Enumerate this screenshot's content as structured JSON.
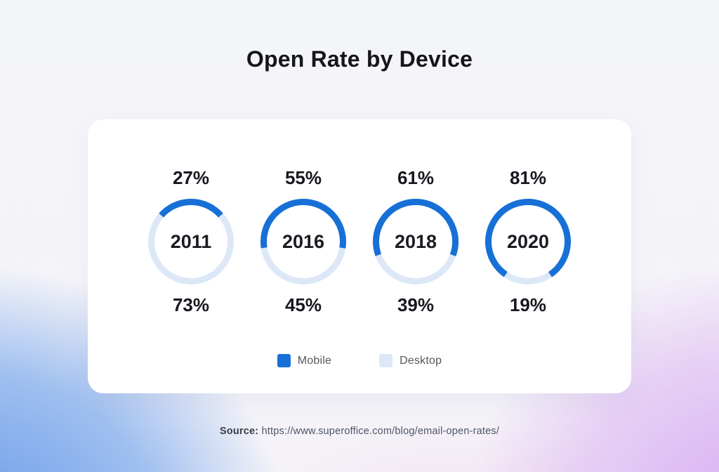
{
  "title": "Open Rate by Device",
  "chart_data": {
    "type": "donut-series",
    "title": "Open Rate by Device",
    "categories": [
      "2011",
      "2016",
      "2018",
      "2020"
    ],
    "series": [
      {
        "name": "Mobile",
        "values": [
          27,
          55,
          61,
          81
        ],
        "color": "#1670d6"
      },
      {
        "name": "Desktop",
        "values": [
          73,
          45,
          39,
          19
        ],
        "color": "#dde8f7"
      }
    ],
    "value_format": "percent",
    "legend_position": "bottom",
    "arc_alignment": "mobile-arc-centered-at-top"
  },
  "legend": {
    "items": [
      {
        "label": "Mobile",
        "color": "#1670d6"
      },
      {
        "label": "Desktop",
        "color": "#dde8f7"
      }
    ]
  },
  "source": {
    "label": "Source:",
    "url_text": "https://www.superoffice.com/blog/email-open-rates/"
  },
  "colors": {
    "mobile_arc": "#1670d6",
    "desktop_arc": "#dde8f7",
    "card_background": "#ffffff",
    "title_text": "#15151c",
    "background_blue": "#699ee9",
    "background_purple": "#d9b3ee",
    "background_base": "#f4f5f9"
  }
}
